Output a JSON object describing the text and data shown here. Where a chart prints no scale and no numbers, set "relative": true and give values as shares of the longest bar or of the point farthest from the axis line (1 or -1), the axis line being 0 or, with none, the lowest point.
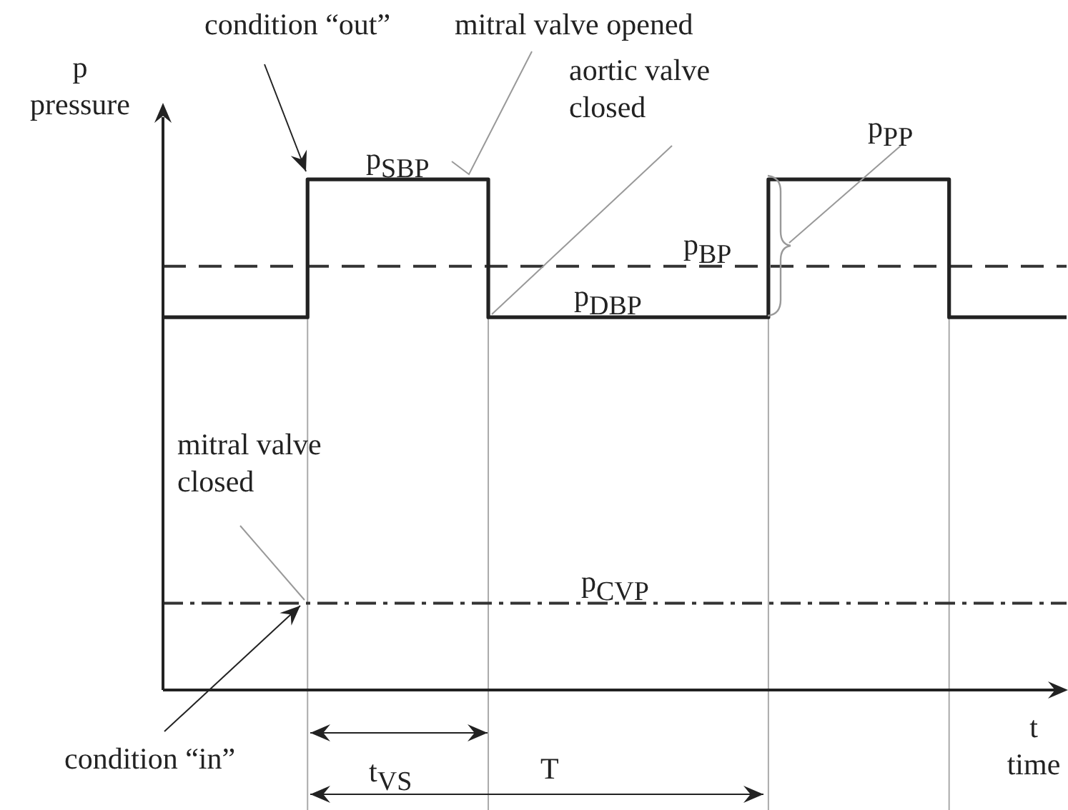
{
  "chart_data": {
    "type": "step",
    "relative": true,
    "xlabel": "t time",
    "ylabel": "p pressure",
    "legend": false,
    "grid": "x",
    "marker": "none",
    "categories": [
      null,
      null,
      null,
      null,
      null,
      null,
      null,
      null,
      null,
      null,
      null,
      null,
      null,
      null,
      null,
      null,
      null,
      null,
      null,
      null,
      null,
      null,
      null,
      null,
      null,
      null,
      null,
      null,
      null,
      null,
      null,
      null,
      null,
      null,
      null,
      null,
      null,
      null,
      null,
      null,
      null,
      null,
      null,
      null,
      null,
      null,
      null,
      null,
      null,
      null,
      null,
      null,
      null,
      null,
      null,
      null,
      null,
      null,
      null,
      null,
      null,
      null,
      null,
      null,
      null,
      null,
      null,
      null,
      null,
      null,
      null,
      null,
      null,
      null,
      null,
      null,
      null,
      null,
      null,
      null,
      null,
      null,
      null,
      null,
      null,
      null,
      null,
      null,
      null,
      null,
      null,
      null,
      null,
      null,
      null,
      null,
      null,
      null,
      null,
      null,
      null
    ],
    "series": [
      {
        "color": "#222222",
        "line_style": "solid",
        "values": [
          0.73,
          0.73,
          0.73,
          0.73,
          0.73,
          0.73,
          0.73,
          0.73,
          0.73,
          0.73,
          0.73,
          0.73,
          0.73,
          0.73,
          0.73,
          0.73,
          1,
          1,
          1,
          1,
          1,
          1,
          1,
          1,
          1,
          1,
          1,
          1,
          1,
          1,
          1,
          1,
          1,
          1,
          1,
          1,
          0.73,
          0.73,
          0.73,
          0.73,
          0.73,
          0.73,
          0.73,
          0.73,
          0.73,
          0.73,
          0.73,
          0.73,
          0.73,
          0.73,
          0.73,
          0.73,
          0.73,
          0.73,
          0.73,
          0.73,
          0.73,
          0.73,
          0.73,
          0.73,
          0.73,
          0.73,
          0.73,
          0.73,
          0.73,
          0.73,
          0.73,
          1,
          1,
          1,
          1,
          1,
          1,
          1,
          1,
          1,
          1,
          1,
          1,
          1,
          1,
          1,
          1,
          1,
          1,
          1,
          1,
          0.73,
          0.73,
          0.73,
          0.73,
          0.73,
          0.73,
          0.73,
          0.73,
          0.73,
          0.73,
          0.73,
          0.73,
          0.73,
          0.73
        ]
      },
      {
        "type": "line",
        "color": "#333333",
        "line_style": "dashed",
        "values": [
          0.83,
          0.83,
          0.83,
          0.83,
          0.83,
          0.83,
          0.83,
          0.83,
          0.83,
          0.83,
          0.83,
          0.83,
          0.83,
          0.83,
          0.83,
          0.83,
          0.83,
          0.83,
          0.83,
          0.83,
          0.83,
          0.83,
          0.83,
          0.83,
          0.83,
          0.83,
          0.83,
          0.83,
          0.83,
          0.83,
          0.83,
          0.83,
          0.83,
          0.83,
          0.83,
          0.83,
          0.83,
          0.83,
          0.83,
          0.83,
          0.83,
          0.83,
          0.83,
          0.83,
          0.83,
          0.83,
          0.83,
          0.83,
          0.83,
          0.83,
          0.83,
          0.83,
          0.83,
          0.83,
          0.83,
          0.83,
          0.83,
          0.83,
          0.83,
          0.83,
          0.83,
          0.83,
          0.83,
          0.83,
          0.83,
          0.83,
          0.83,
          0.83,
          0.83,
          0.83,
          0.83,
          0.83,
          0.83,
          0.83,
          0.83,
          0.83,
          0.83,
          0.83,
          0.83,
          0.83,
          0.83,
          0.83,
          0.83,
          0.83,
          0.83,
          0.83,
          0.83,
          0.83,
          0.83,
          0.83,
          0.83,
          0.83,
          0.83,
          0.83,
          0.83,
          0.83,
          0.83,
          0.83,
          0.83,
          0.83,
          0.83
        ]
      },
      {
        "type": "line",
        "color": "#333333",
        "line_style": "dashdot",
        "values": [
          0.17,
          0.17,
          0.17,
          0.17,
          0.17,
          0.17,
          0.17,
          0.17,
          0.17,
          0.17,
          0.17,
          0.17,
          0.17,
          0.17,
          0.17,
          0.17,
          0.17,
          0.17,
          0.17,
          0.17,
          0.17,
          0.17,
          0.17,
          0.17,
          0.17,
          0.17,
          0.17,
          0.17,
          0.17,
          0.17,
          0.17,
          0.17,
          0.17,
          0.17,
          0.17,
          0.17,
          0.17,
          0.17,
          0.17,
          0.17,
          0.17,
          0.17,
          0.17,
          0.17,
          0.17,
          0.17,
          0.17,
          0.17,
          0.17,
          0.17,
          0.17,
          0.17,
          0.17,
          0.17,
          0.17,
          0.17,
          0.17,
          0.17,
          0.17,
          0.17,
          0.17,
          0.17,
          0.17,
          0.17,
          0.17,
          0.17,
          0.17,
          0.17,
          0.17,
          0.17,
          0.17,
          0.17,
          0.17,
          0.17,
          0.17,
          0.17,
          0.17,
          0.17,
          0.17,
          0.17,
          0.17,
          0.17,
          0.17,
          0.17,
          0.17,
          0.17,
          0.17,
          0.17,
          0.17,
          0.17,
          0.17,
          0.17,
          0.17,
          0.17,
          0.17,
          0.17,
          0.17,
          0.17,
          0.17,
          0.17,
          0.17
        ]
      }
    ],
    "annotations": [
      "condition “out”",
      "mitral valve opened",
      "aortic valve closed",
      "mitral valve closed",
      "condition “in”",
      {
        "text": "p$_{SBP}$",
        "y": 1
      },
      {
        "text": "p$_{DBP}$",
        "y": 0.73
      },
      {
        "text": "p$_{BP}$",
        "y": 0.83
      },
      "p$_{PP}$",
      {
        "text": "p$_{CVP}$",
        "y": 0.17
      },
      "t$_{VS}$",
      "T"
    ]
  }
}
